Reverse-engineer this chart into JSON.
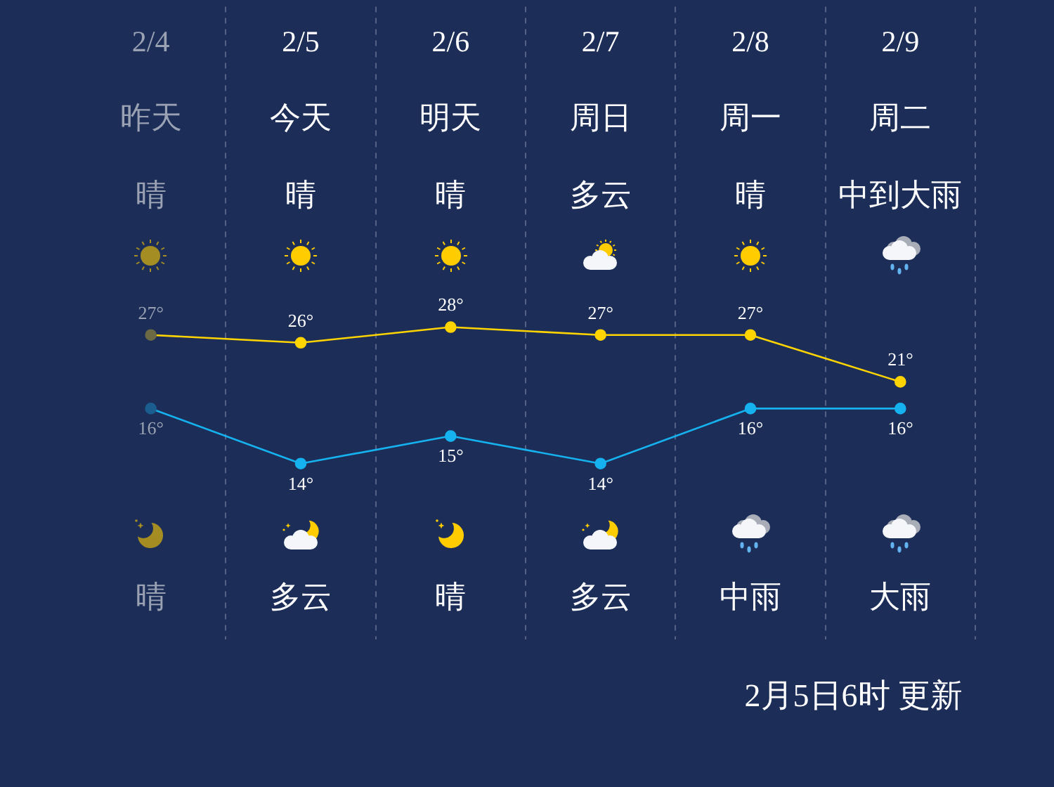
{
  "chart_data": {
    "type": "line",
    "categories": [
      "2/4",
      "2/5",
      "2/6",
      "2/7",
      "2/8",
      "2/9"
    ],
    "series": [
      {
        "color": "#ffd400",
        "colors": [
          "#6b6a45",
          "#ffd400",
          "#ffd400",
          "#ffd400",
          "#ffd400",
          "#ffd400"
        ],
        "values": [
          27,
          26,
          28,
          27,
          27,
          21
        ],
        "value_labels": [
          "27°",
          "26°",
          "28°",
          "27°",
          "27°",
          "21°"
        ]
      },
      {
        "color": "#16b2ef",
        "colors": [
          "#1a5d8e",
          "#16b2ef",
          "#16b2ef",
          "#16b2ef",
          "#16b2ef",
          "#16b2ef"
        ],
        "values": [
          16,
          14,
          15,
          14,
          16,
          16
        ],
        "value_labels": [
          "16°",
          "14°",
          "15°",
          "14°",
          "16°",
          "16°"
        ],
        "axis": "y2"
      }
    ],
    "ylim": [
      -12,
      69
    ],
    "y2lim": [
      7.6,
      30.6
    ],
    "marker": "circle",
    "grid": "x",
    "tick_labels": "x",
    "annotations": [
      "昨天",
      "今天",
      "明天",
      "周日",
      "周一",
      "周二",
      "晴",
      "晴",
      "晴",
      "多云",
      "晴",
      "中到大雨",
      "晴",
      "多云",
      "晴",
      "多云",
      "中雨",
      "大雨",
      "2月5日6时 更新"
    ]
  }
}
